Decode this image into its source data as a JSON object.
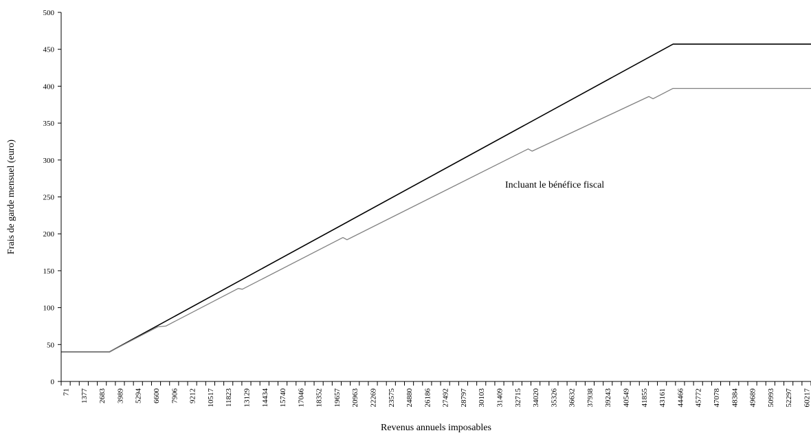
{
  "chart_data": {
    "type": "line",
    "title": "",
    "xlabel": "Revenus annuels imposables",
    "ylabel": "Frais de garde mensuel (euro)",
    "ylim": [
      0,
      500
    ],
    "yticks": [
      0,
      50,
      100,
      150,
      200,
      250,
      300,
      350,
      400,
      450,
      500
    ],
    "grid": false,
    "legend": "none",
    "x_tick_labels": [
      "71",
      "1377",
      "2683",
      "3989",
      "5294",
      "6600",
      "7906",
      "9212",
      "10517",
      "11823",
      "13129",
      "14434",
      "15740",
      "17046",
      "18352",
      "19657",
      "20963",
      "22269",
      "23575",
      "24880",
      "26186",
      "27492",
      "28797",
      "30103",
      "31409",
      "32715",
      "34020",
      "35326",
      "36632",
      "37938",
      "39243",
      "40549",
      "41855",
      "43161",
      "44466",
      "45772",
      "47078",
      "48384",
      "49689",
      "50993",
      "52297",
      "60217"
    ],
    "xlim": [
      71,
      60871
    ],
    "annotation": "Incluant le bénéfice fiscal",
    "series": [
      {
        "color": "#000000",
        "x": [
          71,
          3989,
          49689,
          60871
        ],
        "y": [
          40,
          40,
          457,
          457
        ]
      },
      {
        "color": "#808080",
        "x": [
          71,
          3989,
          7906,
          8559,
          14434,
          14760,
          22922,
          23248,
          37938,
          38264,
          47731,
          48058,
          49689,
          60871
        ],
        "y": [
          40,
          40,
          74,
          75,
          126,
          125,
          195,
          192,
          315,
          312,
          386,
          383,
          397,
          397
        ]
      }
    ]
  }
}
